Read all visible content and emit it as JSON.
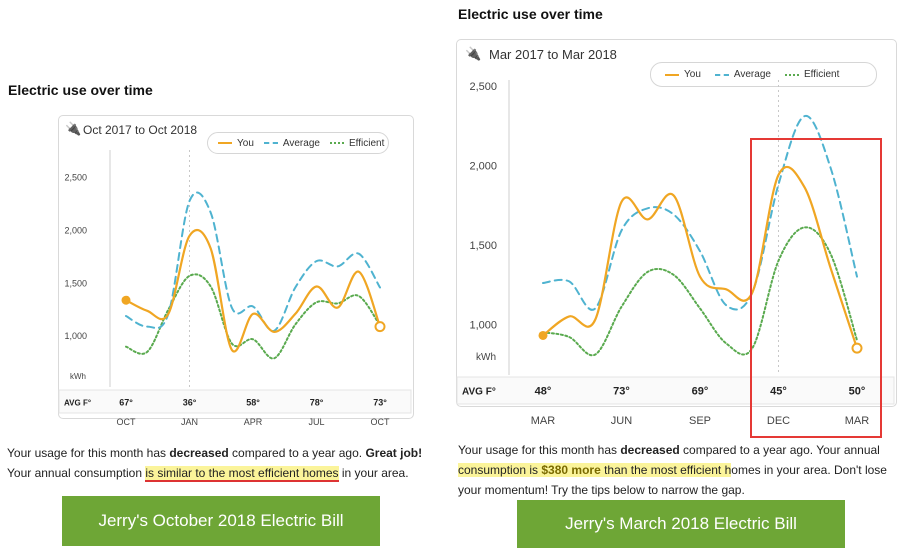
{
  "left": {
    "heading": "Electric use over time",
    "range": "Oct 2017 to Oct 2018",
    "banner": "Jerry's October 2018 Electric Bill",
    "message": {
      "l1_pre": "Your usage for this month has ",
      "l1_bold1": "decreased",
      "l1_mid": " compared to a year ago. ",
      "l1_bold2": "Great job!",
      "l2_pre": "Your annual consumption ",
      "l2_hl": "is similar to the most efficient homes",
      "l2_post": " in your area."
    }
  },
  "right": {
    "heading": "Electric use over time",
    "range": "Mar 2017 to Mar 2018",
    "banner": "Jerry's March 2018 Electric Bill",
    "message": {
      "l1": "Your usage for this month has ",
      "l1_bold": "decreased",
      "l1_post": " compared to a year ago. Your annual",
      "l2_hl1": "consumption is ",
      "l2_bold": "$380 more",
      "l2_hl2": " than the most efficient h",
      "l2_post": "omes in your area. Don't lose",
      "l3": "your momentum! Try the tips below to narrow the gap."
    }
  },
  "legend": {
    "you": "You",
    "average": "Average",
    "efficient": "Efficient"
  },
  "colors": {
    "you": "#f0a623",
    "average": "#4fb3d0",
    "efficient": "#5aaa4f",
    "highlight_box": "#e53935",
    "banner": "#6ea636"
  },
  "chart_data": [
    {
      "type": "line",
      "title": "Oct 2017 to Oct 2018",
      "ylabel": "kWh",
      "ylim": [
        650,
        2800
      ],
      "yticks": [
        1000,
        1500,
        2000,
        2500
      ],
      "ytick_labels": [
        "1,000",
        "1,500",
        "2,000",
        "2,500"
      ],
      "avg_temp_label": "AVG F°",
      "x": [
        0,
        1,
        2,
        3,
        4,
        5,
        6,
        7,
        8,
        9,
        10,
        11,
        12
      ],
      "x_ticks": [
        0,
        3,
        6,
        9,
        12
      ],
      "x_tick_labels": [
        "OCT",
        "JAN",
        "APR",
        "JUL",
        "OCT"
      ],
      "temps": [
        "67°",
        "36°",
        "58°",
        "78°",
        "73°"
      ],
      "series": [
        {
          "name": "You",
          "values": [
            1330,
            1230,
            1200,
            1940,
            1820,
            860,
            1200,
            1030,
            1200,
            1460,
            1260,
            1600,
            1080
          ]
        },
        {
          "name": "Average",
          "values": [
            1180,
            1080,
            1200,
            2270,
            2160,
            1260,
            1270,
            1040,
            1450,
            1700,
            1650,
            1770,
            1450
          ]
        },
        {
          "name": "Efficient",
          "values": [
            890,
            840,
            1240,
            1560,
            1460,
            920,
            960,
            780,
            1100,
            1310,
            1300,
            1370,
            1090
          ]
        }
      ],
      "legend": "top-right",
      "grid": false
    },
    {
      "type": "line",
      "title": "Mar 2017 to Mar 2018",
      "ylabel": "kWh",
      "ylim": [
        700,
        2600
      ],
      "yticks": [
        1000,
        1500,
        2000,
        2500
      ],
      "ytick_labels": [
        "1,000",
        "1,500",
        "2,000",
        "2,500"
      ],
      "avg_temp_label": "AVG F°",
      "x": [
        0,
        1,
        2,
        3,
        4,
        5,
        6,
        7,
        8,
        9,
        10,
        11,
        12
      ],
      "x_ticks": [
        0,
        3,
        6,
        9,
        12
      ],
      "x_tick_labels": [
        "MAR",
        "JUN",
        "SEP",
        "DEC",
        "MAR"
      ],
      "temps": [
        "48°",
        "73°",
        "69°",
        "45°",
        "50°"
      ],
      "series": [
        {
          "name": "You",
          "values": [
            930,
            1050,
            1030,
            1770,
            1660,
            1810,
            1300,
            1220,
            1200,
            1940,
            1860,
            1350,
            850
          ]
        },
        {
          "name": "Average",
          "values": [
            1260,
            1270,
            1100,
            1590,
            1730,
            1690,
            1460,
            1120,
            1200,
            1880,
            2310,
            1980,
            1300
          ]
        },
        {
          "name": "Efficient",
          "values": [
            950,
            920,
            810,
            1110,
            1330,
            1310,
            1100,
            880,
            850,
            1400,
            1610,
            1440,
            900
          ]
        }
      ],
      "legend": "top-right",
      "grid": false,
      "highlight": "DEC–MAR"
    }
  ]
}
